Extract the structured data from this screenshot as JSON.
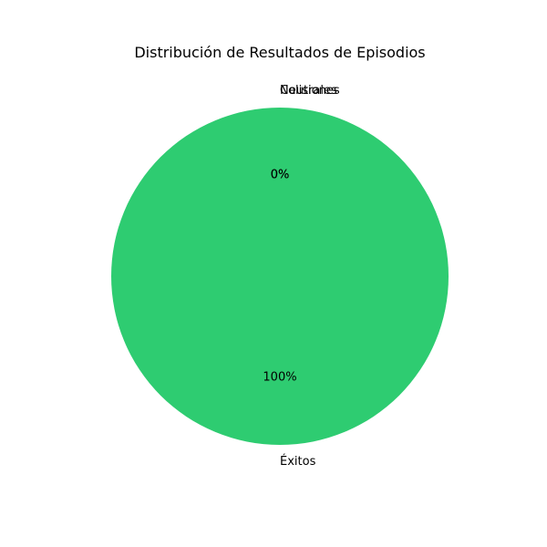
{
  "chart_data": {
    "type": "pie",
    "title": "Distribución de Resultados de Episodios",
    "slices": [
      {
        "label": "Éxitos",
        "value": 100,
        "pct_label": "100%",
        "color": "#2ecc71"
      },
      {
        "label": "Neutrales",
        "value": 0,
        "pct_label": "0%",
        "color": "#95a5a6"
      },
      {
        "label": "Colisiones",
        "value": 0,
        "pct_label": "0%",
        "color": "#e74c3c"
      }
    ]
  }
}
